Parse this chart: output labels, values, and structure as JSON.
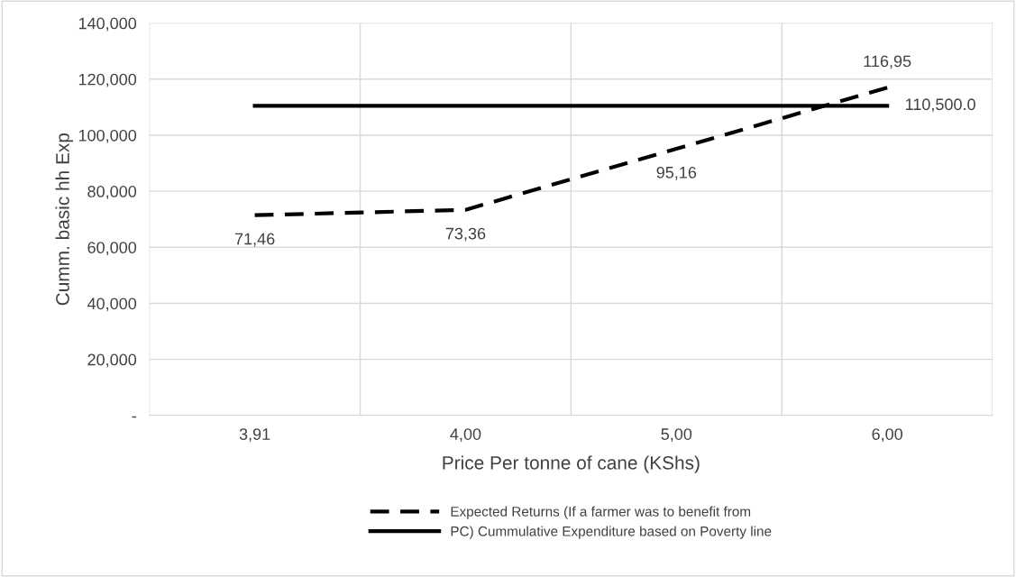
{
  "chart_data": {
    "type": "line",
    "xlabel": "Price Per tonne of cane (KShs)",
    "ylabel": "Cumm. basic hh Exp",
    "categories": [
      "3,91",
      "4,00",
      "5,00",
      "6,00"
    ],
    "series": [
      {
        "name": "Expected Returns (If a farmer was to benefit from",
        "color": "#000000",
        "line_style": "dashed",
        "values": [
          71460,
          73360,
          95160,
          116950
        ]
      },
      {
        "name": "PC) Cummulative Expenditure based on Poverty line",
        "color": "#000000",
        "line_style": "solid",
        "values": [
          110500,
          110500,
          110500,
          110500
        ],
        "value_labels": [
          null,
          null,
          null,
          "110,500.0"
        ]
      }
    ],
    "ylim": [
      0,
      140000
    ],
    "yticks": [
      {
        "value": 0,
        "label": "-"
      },
      {
        "value": 20000,
        "label": "20,000"
      },
      {
        "value": 40000,
        "label": "40,000"
      },
      {
        "value": 60000,
        "label": "60,000"
      },
      {
        "value": 80000,
        "label": "80,000"
      },
      {
        "value": 100000,
        "label": "100,000"
      },
      {
        "value": 120000,
        "label": "120,000"
      },
      {
        "value": 140000,
        "label": "140,000"
      }
    ],
    "annotations": [
      {
        "text": "71,46",
        "x": "3,91",
        "y": 71460
      },
      {
        "text": "73,36",
        "x": "4,00",
        "y": 73360
      },
      {
        "text": "95,16",
        "x": "5,00",
        "y": 95160
      },
      {
        "text": "116,95",
        "x": "6,00",
        "y": 116950
      }
    ],
    "grid": true,
    "legend": "bottom",
    "marker": "none"
  }
}
